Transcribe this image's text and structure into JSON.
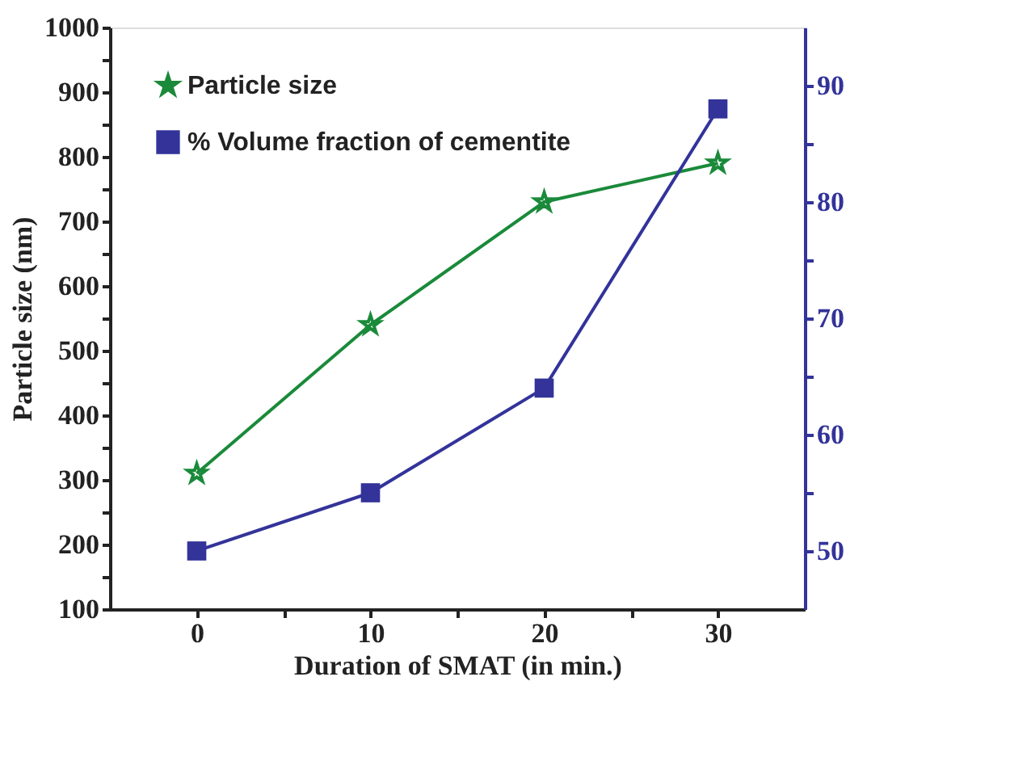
{
  "chart_data": {
    "type": "line",
    "xlabel": "Duration of SMAT (in min.)",
    "ylabel": "Particle size (nm)",
    "x": [
      0,
      10,
      20,
      30
    ],
    "series": [
      {
        "name": "Particle size",
        "color": "#1a8a3a",
        "marker": "star",
        "values": [
          310,
          540,
          730,
          790
        ]
      },
      {
        "name": "% Volume fraction of cementite",
        "color": "#33339a",
        "marker": "square",
        "axis": "y2",
        "values": [
          50,
          55,
          64,
          88
        ]
      }
    ],
    "xlim": [
      -5,
      35
    ],
    "xticks": [
      0,
      {
        "value": 5,
        "label": null
      },
      10,
      {
        "value": 15,
        "label": null
      },
      20,
      {
        "value": 25,
        "label": null
      },
      30
    ],
    "ylim": [
      100,
      1000
    ],
    "yticks": [
      100,
      {
        "value": 150,
        "label": null
      },
      200,
      {
        "value": 250,
        "label": null
      },
      300,
      {
        "value": 350,
        "label": null
      },
      400,
      {
        "value": 450,
        "label": null
      },
      500,
      {
        "value": 550,
        "label": null
      },
      600,
      {
        "value": 650,
        "label": null
      },
      700,
      {
        "value": 750,
        "label": null
      },
      800,
      {
        "value": 850,
        "label": null
      },
      900,
      {
        "value": 950,
        "label": null
      },
      1000
    ],
    "y2lim": [
      45,
      95
    ],
    "y2ticks": [
      50,
      {
        "value": 55,
        "label": null
      },
      60,
      {
        "value": 65,
        "label": null
      },
      70,
      {
        "value": 75,
        "label": null
      },
      80,
      {
        "value": 85,
        "label": null
      },
      90
    ],
    "legend": "top left",
    "grid": false,
    "line_style": "solid"
  }
}
